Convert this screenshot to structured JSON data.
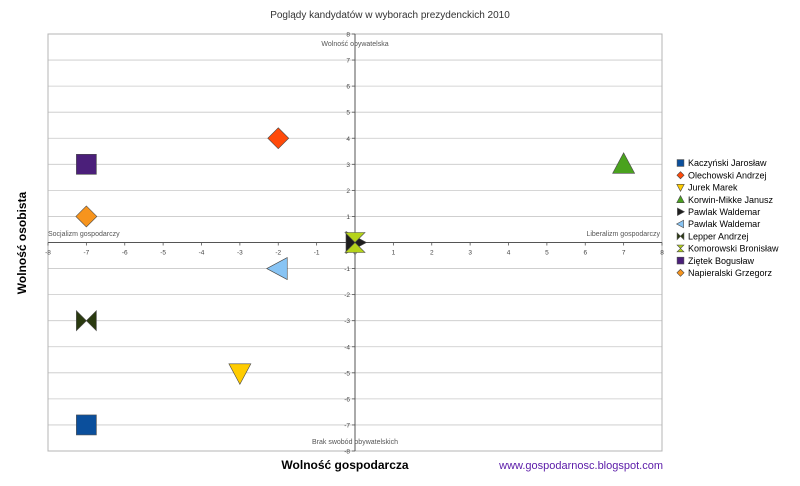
{
  "chart_data": {
    "type": "scatter",
    "title": "Poglądy kandydatów w wyborach prezydenckich 2010",
    "xlabel": "Wolność gospodarcza",
    "ylabel": "Wolność osobista",
    "xlim": [
      -8,
      8
    ],
    "ylim": [
      -8,
      8
    ],
    "xticks": [
      -8,
      -7,
      -6,
      -5,
      -4,
      -3,
      -2,
      -1,
      0,
      1,
      2,
      3,
      4,
      5,
      6,
      7,
      8
    ],
    "yticks": [
      -8,
      -7,
      -6,
      -5,
      -4,
      -3,
      -2,
      -1,
      0,
      1,
      2,
      3,
      4,
      5,
      6,
      7,
      8
    ],
    "grid": true,
    "legend_position": "right",
    "quadrant_labels": {
      "top": "Wolność obywatelska",
      "bottom": "Brak swobód obywatelskich",
      "left": "Socjalizm gospodarczy",
      "right": "Liberalizm gospodarczy"
    },
    "series": [
      {
        "name": "Kaczyński Jarosław",
        "x": -7,
        "y": -7,
        "marker": "square",
        "color": "#0b4f9c"
      },
      {
        "name": "Olechowski Andrzej",
        "x": -2,
        "y": 4,
        "marker": "diamond",
        "color": "#ff4a0a"
      },
      {
        "name": "Jurek Marek",
        "x": -3,
        "y": -5,
        "marker": "triangle-down",
        "color": "#ffcc00"
      },
      {
        "name": "Korwin-Mikke Janusz",
        "x": 7,
        "y": 3,
        "marker": "triangle-up",
        "color": "#4aa21e"
      },
      {
        "name": "Pawlak Waldemar",
        "x": 0,
        "y": 0,
        "marker": "triangle-right",
        "color": "#1e1e1e"
      },
      {
        "name": "Pawlak Waldemar",
        "x": -2,
        "y": -1,
        "marker": "triangle-left",
        "color": "#88c4f4"
      },
      {
        "name": "Lepper Andrzej",
        "x": -7,
        "y": -3,
        "marker": "bowtie",
        "color": "#2a3a10"
      },
      {
        "name": "Komorowski Bronisław",
        "x": 0,
        "y": 0,
        "marker": "hourglass",
        "color": "#b5d31a"
      },
      {
        "name": "Ziętek Bogusław",
        "x": -7,
        "y": 3,
        "marker": "square",
        "color": "#4b1f7a"
      },
      {
        "name": "Napieralski Grzegorz",
        "x": -7,
        "y": 1,
        "marker": "diamond",
        "color": "#f7941d"
      }
    ]
  },
  "footer": {
    "site": "www.gospodarnosc.blogspot.com"
  }
}
